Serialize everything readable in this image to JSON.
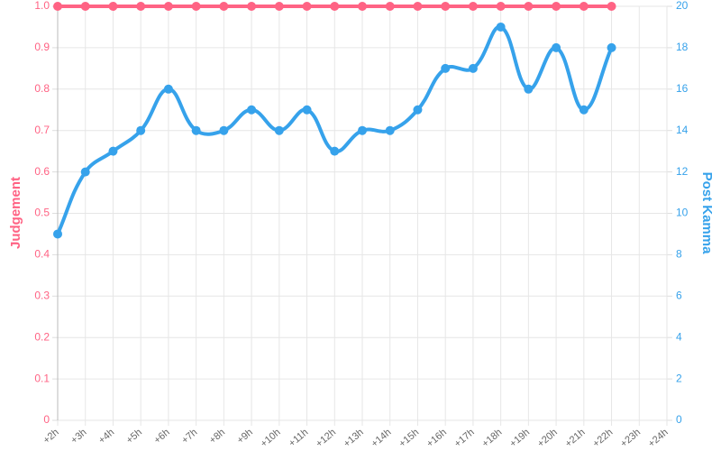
{
  "chart_data": {
    "type": "line",
    "categories": [
      "+2h",
      "+3h",
      "+4h",
      "+5h",
      "+6h",
      "+7h",
      "+8h",
      "+9h",
      "+10h",
      "+11h",
      "+12h",
      "+13h",
      "+14h",
      "+15h",
      "+16h",
      "+17h",
      "+18h",
      "+19h",
      "+20h",
      "+21h",
      "+22h",
      "+23h",
      "+24h"
    ],
    "series": [
      {
        "name": "Judgement",
        "color": "#ff6384",
        "axis": "y",
        "values": [
          1,
          1,
          1,
          1,
          1,
          1,
          1,
          1,
          1,
          1,
          1,
          1,
          1,
          1,
          1,
          1,
          1,
          1,
          1,
          1,
          1,
          null,
          null
        ]
      },
      {
        "name": "Post Kamma",
        "color": "#36a2eb",
        "axis": "y2",
        "values": [
          9,
          12,
          13,
          14,
          16,
          14,
          14,
          15,
          14,
          15,
          13,
          14,
          14,
          15,
          17,
          17,
          19,
          16,
          18,
          15,
          18,
          null,
          null
        ]
      }
    ],
    "ylabel": "Judgement",
    "y2label": "Post Kamma",
    "ylim": [
      0,
      1
    ],
    "yticks": [
      0,
      0.1,
      0.2,
      0.3,
      0.4,
      0.5,
      0.6,
      0.7,
      0.8,
      0.9,
      {
        "value": 1,
        "label": "1.0"
      }
    ],
    "y2lim": [
      0,
      20
    ],
    "y2ticks": [
      0,
      2,
      4,
      6,
      8,
      10,
      12,
      14,
      16,
      18,
      20
    ],
    "grid": true
  }
}
